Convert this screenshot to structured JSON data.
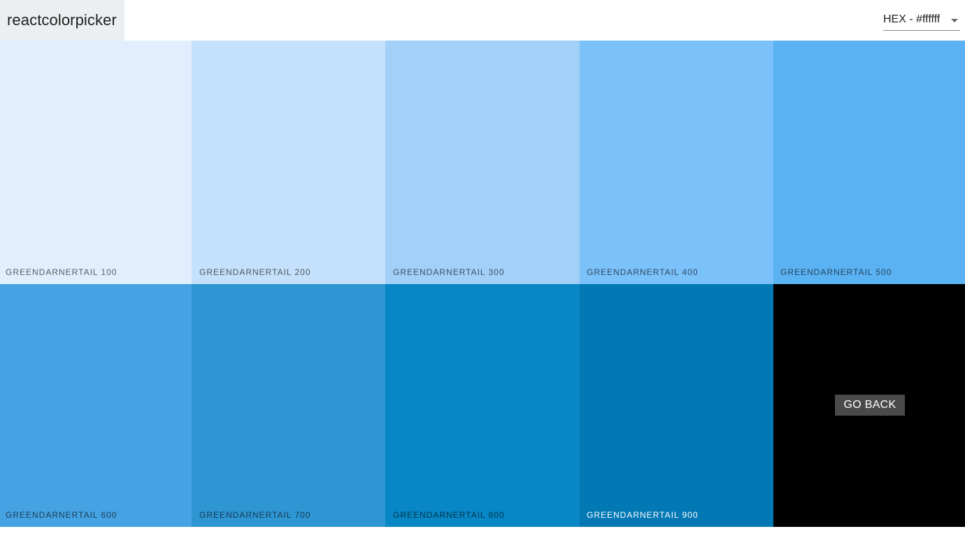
{
  "navbar": {
    "logo": "reactcolorpicker",
    "format_select": {
      "value": "HEX - #ffffff"
    }
  },
  "palette": {
    "name": "GreenDarnerTail",
    "swatches": [
      {
        "label": "GREENDARNERTAIL 100",
        "color": "#e1eefd"
      },
      {
        "label": "GREENDARNERTAIL 200",
        "color": "#c4e0fb"
      },
      {
        "label": "GREENDARNERTAIL 300",
        "color": "#a2d0f9"
      },
      {
        "label": "GREENDARNERTAIL 400",
        "color": "#7bc1fa"
      },
      {
        "label": "GREENDARNERTAIL 500",
        "color": "#5ab2f3"
      },
      {
        "label": "GREENDARNERTAIL 600",
        "color": "#45a2e3"
      },
      {
        "label": "GREENDARNERTAIL 700",
        "color": "#2f96d4"
      },
      {
        "label": "GREENDARNERTAIL 800",
        "color": "#0787c5"
      },
      {
        "label": "GREENDARNERTAIL 900",
        "color": "#0278b5"
      }
    ],
    "go_back_label": "GO BACK"
  },
  "colors": {
    "logo_bg": "#eceff1",
    "go_back_box_bg": "#000000",
    "go_back_button_bg": "#4a4a4a"
  }
}
